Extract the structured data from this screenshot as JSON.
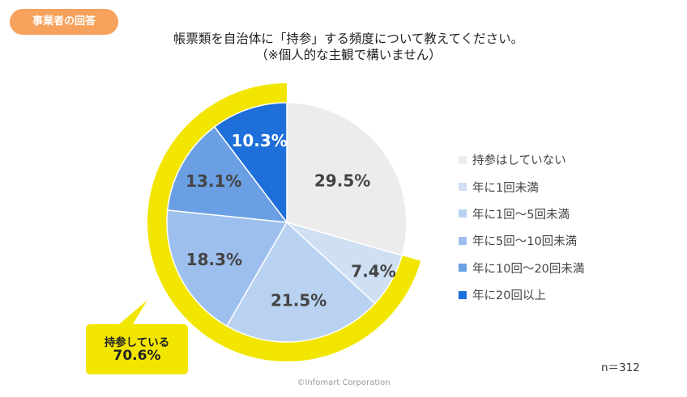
{
  "badge": "事業者の回答",
  "title_line1": "帳票類を自治体に「持参」する頻度について教えてください。",
  "title_line2": "（※個人的な主観で構いません）",
  "chart_data": {
    "type": "pie",
    "unit": "%",
    "categories": [
      "持参はしていない",
      "年に1回未満",
      "年に1回～5回未満",
      "年に5回～10回未満",
      "年に10回～20回未満",
      "年に20回以上"
    ],
    "values": [
      29.5,
      7.4,
      21.5,
      18.3,
      13.1,
      10.3
    ],
    "data_labels": [
      "29.5%",
      "7.4%",
      "21.5%",
      "18.3%",
      "13.1%",
      "10.3%"
    ],
    "colors": [
      "#ececec",
      "#cfdff4",
      "#b9d2f1",
      "#9dbfee",
      "#6a9fe3",
      "#1e6fd9"
    ],
    "legend": "right"
  },
  "highlight": {
    "line1": "持参している",
    "line2": "70.6%",
    "ring_color": "#f2e600"
  },
  "sample_size": "n＝312",
  "copyright": "©Infomart Corporation"
}
